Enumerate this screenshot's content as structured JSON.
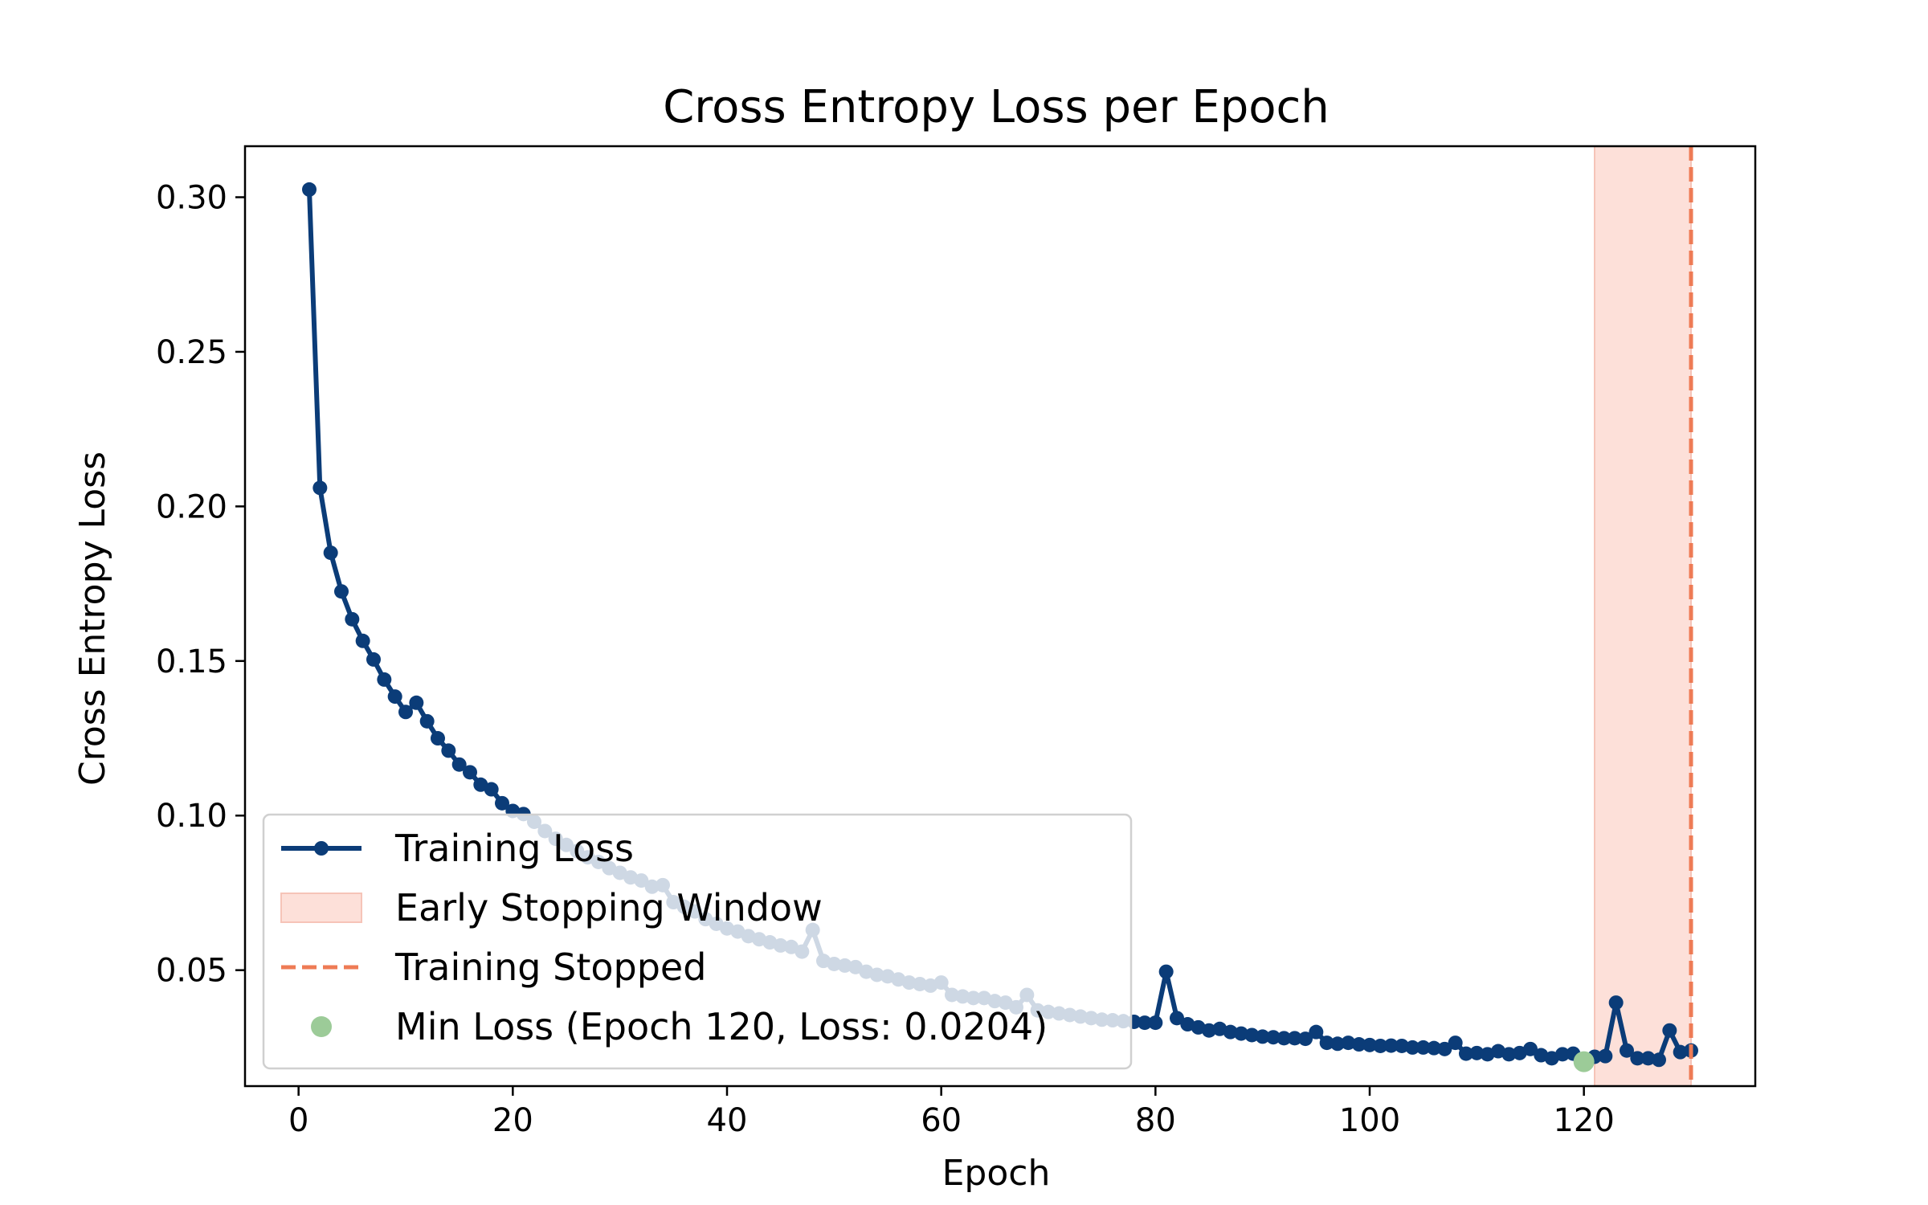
{
  "chart_data": {
    "type": "line",
    "title": "Cross Entropy Loss per Epoch",
    "xlabel": "Epoch",
    "ylabel": "Cross Entropy Loss",
    "xlim": [
      -5,
      136
    ],
    "ylim": [
      0.0125,
      0.3165
    ],
    "xticks": [
      0,
      20,
      40,
      60,
      80,
      100,
      120
    ],
    "yticks": [
      0.05,
      0.1,
      0.15,
      0.2,
      0.25,
      0.3
    ],
    "xtick_labels": [
      "0",
      "20",
      "40",
      "60",
      "80",
      "100",
      "120"
    ],
    "ytick_labels": [
      "0.05",
      "0.10",
      "0.15",
      "0.20",
      "0.25",
      "0.30"
    ],
    "grid": false,
    "legend_position": "lower-left",
    "colors": {
      "line": "#0b3c78",
      "window_fill": "#fde0d9",
      "window_edge": "#f6c4b8",
      "stop_line": "#ee7b55",
      "min_marker": "#9ccb98"
    },
    "series": [
      {
        "name": "Training Loss",
        "x": [
          1,
          2,
          3,
          4,
          5,
          6,
          7,
          8,
          9,
          10,
          11,
          12,
          13,
          14,
          15,
          16,
          17,
          18,
          19,
          20,
          21,
          22,
          23,
          24,
          25,
          26,
          27,
          28,
          29,
          30,
          31,
          32,
          33,
          34,
          35,
          36,
          37,
          38,
          39,
          40,
          41,
          42,
          43,
          44,
          45,
          46,
          47,
          48,
          49,
          50,
          51,
          52,
          53,
          54,
          55,
          56,
          57,
          58,
          59,
          60,
          61,
          62,
          63,
          64,
          65,
          66,
          67,
          68,
          69,
          70,
          71,
          72,
          73,
          74,
          75,
          76,
          77,
          78,
          79,
          80,
          81,
          82,
          83,
          84,
          85,
          86,
          87,
          88,
          89,
          90,
          91,
          92,
          93,
          94,
          95,
          96,
          97,
          98,
          99,
          100,
          101,
          102,
          103,
          104,
          105,
          106,
          107,
          108,
          109,
          110,
          111,
          112,
          113,
          114,
          115,
          116,
          117,
          118,
          119,
          120,
          121,
          122,
          123,
          124,
          125,
          126,
          127,
          128,
          129,
          130
        ],
        "y": [
          0.3025,
          0.206,
          0.185,
          0.1725,
          0.1635,
          0.1565,
          0.1505,
          0.144,
          0.1385,
          0.1335,
          0.1365,
          0.1305,
          0.125,
          0.121,
          0.1165,
          0.114,
          0.11,
          0.1085,
          0.104,
          0.1015,
          0.1005,
          0.098,
          0.095,
          0.0925,
          0.0905,
          0.0885,
          0.0865,
          0.085,
          0.083,
          0.0815,
          0.08,
          0.079,
          0.077,
          0.0775,
          0.072,
          0.0705,
          0.069,
          0.0665,
          0.065,
          0.0635,
          0.0625,
          0.061,
          0.06,
          0.059,
          0.058,
          0.0575,
          0.056,
          0.063,
          0.053,
          0.052,
          0.0515,
          0.051,
          0.0495,
          0.0485,
          0.048,
          0.047,
          0.046,
          0.0455,
          0.045,
          0.046,
          0.042,
          0.0415,
          0.041,
          0.041,
          0.04,
          0.0395,
          0.038,
          0.042,
          0.037,
          0.0365,
          0.036,
          0.0355,
          0.035,
          0.0345,
          0.034,
          0.0338,
          0.0335,
          0.0333,
          0.033,
          0.033,
          0.0495,
          0.0345,
          0.0325,
          0.0315,
          0.0305,
          0.031,
          0.03,
          0.0295,
          0.029,
          0.0285,
          0.0283,
          0.028,
          0.028,
          0.0278,
          0.03,
          0.0265,
          0.0262,
          0.0265,
          0.026,
          0.0258,
          0.0255,
          0.0256,
          0.0255,
          0.025,
          0.025,
          0.0248,
          0.0245,
          0.0265,
          0.023,
          0.0232,
          0.0228,
          0.0238,
          0.0228,
          0.0232,
          0.0245,
          0.0225,
          0.0215,
          0.0228,
          0.023,
          0.0204,
          0.022,
          0.0222,
          0.0395,
          0.024,
          0.0215,
          0.0215,
          0.021,
          0.0305,
          0.0235,
          0.024
        ]
      }
    ],
    "early_stopping_window": {
      "x_start": 121,
      "x_end": 130
    },
    "stop_epoch": 130,
    "min_point": {
      "x": 120,
      "y": 0.0204
    },
    "legend": {
      "training_loss": "Training Loss",
      "window": "Early Stopping Window",
      "stopped": "Training Stopped",
      "min_loss": "Min Loss (Epoch 120, Loss: 0.0204)"
    }
  }
}
